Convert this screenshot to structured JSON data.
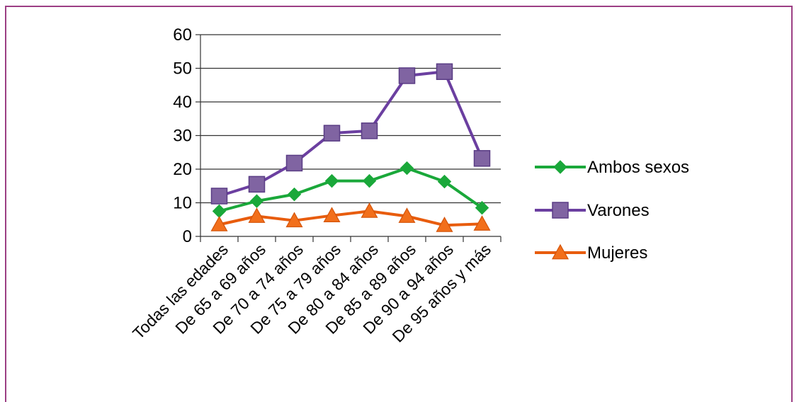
{
  "chart_data": {
    "type": "line",
    "categories": [
      "Todas las edades",
      "De 65 a 69 años",
      "De 70 a 74 años",
      "De 75 a 79 años",
      "De 80 a 84 años",
      "De 85 a 89 años",
      "De 90 a 94 años",
      "De 95 años y más"
    ],
    "series": [
      {
        "name": "Ambos sexos",
        "values": [
          7.5,
          10.5,
          12.5,
          16.5,
          16.5,
          20.3,
          16.3,
          8.5
        ],
        "color": "#1aa83a",
        "marker": "diamond"
      },
      {
        "name": "Varones",
        "values": [
          12,
          15.5,
          21.8,
          30.7,
          31.4,
          47.8,
          49,
          23.2
        ],
        "color": "#6b3fa0",
        "marker": "square"
      },
      {
        "name": "Mujeres",
        "values": [
          3.5,
          6,
          4.7,
          6.2,
          7.5,
          6,
          3.3,
          3.7
        ],
        "color": "#e85c0d",
        "marker": "triangle"
      }
    ],
    "ylim": [
      0,
      60
    ],
    "yticks": [
      0,
      10,
      20,
      30,
      40,
      50,
      60
    ],
    "grid": true,
    "legend_position": "right",
    "title": "",
    "xlabel": "",
    "ylabel": ""
  }
}
